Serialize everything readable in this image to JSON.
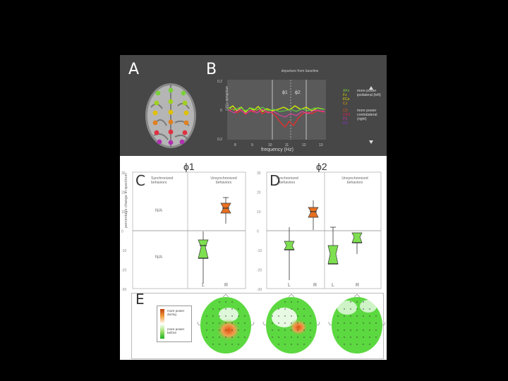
{
  "panels": {
    "a": "A",
    "b": "B",
    "c": "C",
    "d": "D",
    "e": "E"
  },
  "panel_b": {
    "departure_label": "departure from baseline",
    "phi1": "ϕ1",
    "phi2": "ϕ2",
    "ylabel": "amplitude-r(t)(r)",
    "xlabel": "frequency (Hz)",
    "yticks": [
      "0.2",
      "0",
      "0.2"
    ],
    "xticks": [
      "8",
      "9",
      "10",
      "11",
      "12",
      "13"
    ],
    "legend": {
      "electrodes_top": [
        "AFz",
        "Fz",
        "FCz",
        "Cz"
      ],
      "electrodes_bottom": [
        "C3",
        "CP3",
        "P3",
        "O1"
      ],
      "text_top": "more power ipsilateral (left)",
      "text_bottom": "more power contralateral (right)",
      "colors_top": [
        "#7cd03a",
        "#c8d000",
        "#e8e000",
        "#e0a000"
      ],
      "colors_bottom": [
        "#e05020",
        "#e02050",
        "#c030a0",
        "#9030d0"
      ]
    }
  },
  "phi_headers": {
    "left": "ϕ1",
    "right": "ϕ2"
  },
  "panel_c": {
    "yticks": [
      "30",
      "20",
      "10",
      "0",
      "-10",
      "-20",
      "-30"
    ],
    "ylabel": "percentage change in spectrum",
    "left_title": "Synchronized behaviors",
    "right_title": "Unsynchronized behaviors",
    "na_top": "N/A",
    "na_bottom": "N/A",
    "xlabels": [
      "L",
      "R"
    ]
  },
  "panel_d": {
    "yticks": [
      "30",
      "20",
      "10",
      "0",
      "-10",
      "-20",
      "-30"
    ],
    "left_title": "Synchronized behaviors",
    "right_title": "Unsynchronized behaviors",
    "xlabels": [
      "L",
      "R",
      "L",
      "R"
    ]
  },
  "panel_e": {
    "legend_top": "more power during",
    "legend_bottom": "more power before"
  },
  "colors": {
    "orange": "#e87020",
    "green": "#7ee050",
    "dark_bg": "#474747"
  }
}
